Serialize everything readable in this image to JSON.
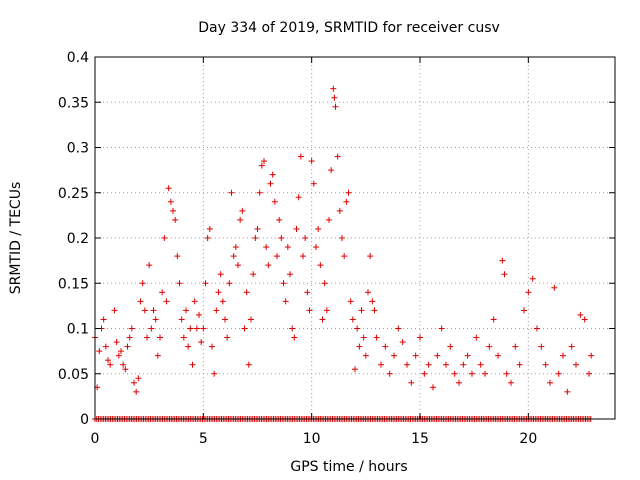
{
  "chart_data": {
    "type": "scatter",
    "title": "Day 334 of 2019, SRMTID for receiver cusv",
    "xlabel": "GPS time / hours",
    "ylabel": "SRMTID / TECUs",
    "xlim": [
      0,
      24
    ],
    "ylim": [
      0,
      0.4
    ],
    "x_ticks": [
      0,
      5,
      10,
      15,
      20
    ],
    "x_tick_labels": [
      "0",
      "5",
      "10",
      "15",
      "20"
    ],
    "y_ticks": [
      0,
      0.05,
      0.1,
      0.15,
      0.2,
      0.25,
      0.3,
      0.35,
      0.4
    ],
    "y_tick_labels": [
      "0",
      "0.05",
      "0.1",
      "0.15",
      "0.2",
      "0.25",
      "0.3",
      "0.35",
      "0.4"
    ],
    "grid": true,
    "marker": "plus",
    "series_color": "#e00000",
    "series": [
      {
        "name": "SRMTID",
        "points": [
          [
            0.0,
            0.09
          ],
          [
            0.1,
            0.035
          ],
          [
            0.2,
            0.075
          ],
          [
            0.3,
            0.1
          ],
          [
            0.4,
            0.11
          ],
          [
            0.5,
            0.08
          ],
          [
            0.6,
            0.065
          ],
          [
            0.7,
            0.06
          ],
          [
            0.9,
            0.12
          ],
          [
            1.0,
            0.085
          ],
          [
            1.1,
            0.07
          ],
          [
            1.2,
            0.075
          ],
          [
            1.3,
            0.06
          ],
          [
            1.4,
            0.055
          ],
          [
            1.5,
            0.08
          ],
          [
            1.6,
            0.09
          ],
          [
            1.7,
            0.1
          ],
          [
            1.8,
            0.04
          ],
          [
            1.9,
            0.03
          ],
          [
            2.0,
            0.045
          ],
          [
            2.1,
            0.13
          ],
          [
            2.2,
            0.15
          ],
          [
            2.3,
            0.12
          ],
          [
            2.4,
            0.09
          ],
          [
            2.5,
            0.17
          ],
          [
            2.6,
            0.1
          ],
          [
            2.7,
            0.12
          ],
          [
            2.8,
            0.11
          ],
          [
            2.9,
            0.07
          ],
          [
            3.0,
            0.09
          ],
          [
            3.1,
            0.14
          ],
          [
            3.2,
            0.2
          ],
          [
            3.3,
            0.13
          ],
          [
            3.4,
            0.255
          ],
          [
            3.5,
            0.24
          ],
          [
            3.6,
            0.23
          ],
          [
            3.7,
            0.22
          ],
          [
            3.8,
            0.18
          ],
          [
            3.9,
            0.15
          ],
          [
            4.0,
            0.11
          ],
          [
            4.1,
            0.09
          ],
          [
            4.2,
            0.12
          ],
          [
            4.3,
            0.08
          ],
          [
            4.4,
            0.1
          ],
          [
            4.5,
            0.06
          ],
          [
            4.6,
            0.13
          ],
          [
            4.7,
            0.1
          ],
          [
            4.8,
            0.115
          ],
          [
            4.9,
            0.085
          ],
          [
            5.0,
            0.1
          ],
          [
            5.1,
            0.15
          ],
          [
            5.2,
            0.2
          ],
          [
            5.3,
            0.21
          ],
          [
            5.4,
            0.08
          ],
          [
            5.5,
            0.05
          ],
          [
            5.6,
            0.12
          ],
          [
            5.7,
            0.14
          ],
          [
            5.8,
            0.16
          ],
          [
            5.9,
            0.13
          ],
          [
            6.0,
            0.11
          ],
          [
            6.1,
            0.09
          ],
          [
            6.2,
            0.15
          ],
          [
            6.3,
            0.25
          ],
          [
            6.4,
            0.18
          ],
          [
            6.5,
            0.19
          ],
          [
            6.6,
            0.17
          ],
          [
            6.7,
            0.22
          ],
          [
            6.8,
            0.23
          ],
          [
            6.9,
            0.1
          ],
          [
            7.0,
            0.14
          ],
          [
            7.1,
            0.06
          ],
          [
            7.2,
            0.11
          ],
          [
            7.3,
            0.16
          ],
          [
            7.4,
            0.2
          ],
          [
            7.5,
            0.21
          ],
          [
            7.6,
            0.25
          ],
          [
            7.7,
            0.28
          ],
          [
            7.8,
            0.285
          ],
          [
            7.9,
            0.19
          ],
          [
            8.0,
            0.17
          ],
          [
            8.1,
            0.26
          ],
          [
            8.2,
            0.27
          ],
          [
            8.3,
            0.24
          ],
          [
            8.4,
            0.18
          ],
          [
            8.5,
            0.22
          ],
          [
            8.6,
            0.2
          ],
          [
            8.7,
            0.15
          ],
          [
            8.8,
            0.13
          ],
          [
            8.9,
            0.19
          ],
          [
            9.0,
            0.16
          ],
          [
            9.1,
            0.1
          ],
          [
            9.2,
            0.09
          ],
          [
            9.3,
            0.21
          ],
          [
            9.4,
            0.245
          ],
          [
            9.5,
            0.29
          ],
          [
            9.6,
            0.18
          ],
          [
            9.7,
            0.2
          ],
          [
            9.8,
            0.14
          ],
          [
            9.9,
            0.12
          ],
          [
            10.0,
            0.285
          ],
          [
            10.1,
            0.26
          ],
          [
            10.2,
            0.19
          ],
          [
            10.3,
            0.21
          ],
          [
            10.4,
            0.17
          ],
          [
            10.5,
            0.11
          ],
          [
            10.6,
            0.15
          ],
          [
            10.7,
            0.12
          ],
          [
            10.8,
            0.22
          ],
          [
            10.9,
            0.275
          ],
          [
            11.0,
            0.365
          ],
          [
            11.05,
            0.355
          ],
          [
            11.1,
            0.345
          ],
          [
            11.2,
            0.29
          ],
          [
            11.3,
            0.23
          ],
          [
            11.4,
            0.2
          ],
          [
            11.5,
            0.18
          ],
          [
            11.6,
            0.24
          ],
          [
            11.7,
            0.25
          ],
          [
            11.8,
            0.13
          ],
          [
            11.9,
            0.11
          ],
          [
            12.0,
            0.055
          ],
          [
            12.1,
            0.1
          ],
          [
            12.2,
            0.08
          ],
          [
            12.3,
            0.12
          ],
          [
            12.4,
            0.09
          ],
          [
            12.5,
            0.07
          ],
          [
            12.6,
            0.14
          ],
          [
            12.7,
            0.18
          ],
          [
            12.8,
            0.13
          ],
          [
            12.9,
            0.12
          ],
          [
            13.0,
            0.09
          ],
          [
            13.2,
            0.06
          ],
          [
            13.4,
            0.08
          ],
          [
            13.6,
            0.05
          ],
          [
            13.8,
            0.07
          ],
          [
            14.0,
            0.1
          ],
          [
            14.2,
            0.085
          ],
          [
            14.4,
            0.06
          ],
          [
            14.6,
            0.04
          ],
          [
            14.8,
            0.07
          ],
          [
            15.0,
            0.09
          ],
          [
            15.2,
            0.05
          ],
          [
            15.4,
            0.06
          ],
          [
            15.6,
            0.035
          ],
          [
            15.8,
            0.07
          ],
          [
            16.0,
            0.1
          ],
          [
            16.2,
            0.06
          ],
          [
            16.4,
            0.08
          ],
          [
            16.6,
            0.05
          ],
          [
            16.8,
            0.04
          ],
          [
            17.0,
            0.06
          ],
          [
            17.2,
            0.07
          ],
          [
            17.4,
            0.05
          ],
          [
            17.6,
            0.09
          ],
          [
            17.8,
            0.06
          ],
          [
            18.0,
            0.05
          ],
          [
            18.2,
            0.08
          ],
          [
            18.4,
            0.11
          ],
          [
            18.6,
            0.07
          ],
          [
            18.8,
            0.175
          ],
          [
            18.9,
            0.16
          ],
          [
            19.0,
            0.05
          ],
          [
            19.2,
            0.04
          ],
          [
            19.4,
            0.08
          ],
          [
            19.6,
            0.06
          ],
          [
            19.8,
            0.12
          ],
          [
            20.0,
            0.14
          ],
          [
            20.2,
            0.155
          ],
          [
            20.4,
            0.1
          ],
          [
            20.6,
            0.08
          ],
          [
            20.8,
            0.06
          ],
          [
            21.0,
            0.04
          ],
          [
            21.2,
            0.145
          ],
          [
            21.4,
            0.05
          ],
          [
            21.6,
            0.07
          ],
          [
            21.8,
            0.03
          ],
          [
            22.0,
            0.08
          ],
          [
            22.2,
            0.06
          ],
          [
            22.4,
            0.115
          ],
          [
            22.6,
            0.11
          ],
          [
            22.8,
            0.05
          ],
          [
            22.9,
            0.07
          ]
        ],
        "zero_line_from": 0,
        "zero_line_to": 22.9
      }
    ]
  }
}
